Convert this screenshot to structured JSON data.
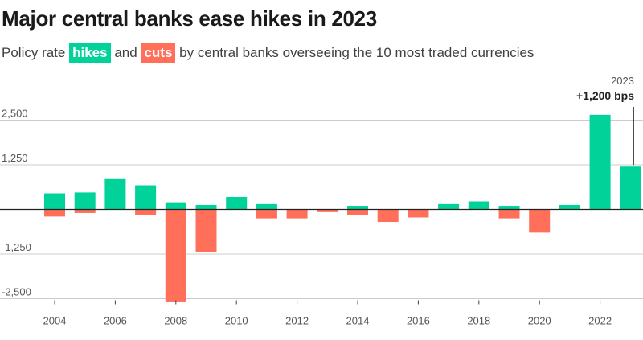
{
  "header": {
    "title": "Major central banks ease hikes in 2023",
    "subtitle_prefix": "Policy rate",
    "hikes_label": "hikes",
    "and_label": "and",
    "cuts_label": "cuts",
    "subtitle_suffix": "by central banks overseeing the 10 most traded currencies"
  },
  "colors": {
    "hikes": "#00d29a",
    "cuts": "#ff6f59",
    "gridline": "#cccccc",
    "zero_line": "#222222"
  },
  "annotation": {
    "year": "2023",
    "value_label": "+1,200 bps"
  },
  "chart_data": {
    "type": "bar",
    "title": "Major central banks ease hikes in 2023",
    "xlabel": "",
    "ylabel": "",
    "ylim": [
      -2600,
      2700
    ],
    "yticks": [
      2500,
      1250,
      -1250,
      -2500
    ],
    "ytick_labels": [
      "2,500",
      "1,250",
      "-1,250",
      "-2,500"
    ],
    "xtick_labels": [
      "2004",
      "2006",
      "2008",
      "2010",
      "2012",
      "2014",
      "2016",
      "2018",
      "2020",
      "2022"
    ],
    "grid": true,
    "categories": [
      2004,
      2005,
      2006,
      2007,
      2008,
      2009,
      2010,
      2011,
      2012,
      2013,
      2014,
      2015,
      2016,
      2017,
      2018,
      2019,
      2020,
      2021,
      2022,
      2023
    ],
    "series": [
      {
        "name": "hikes",
        "values": [
          450,
          475,
          850,
          675,
          200,
          125,
          350,
          150,
          0,
          0,
          100,
          0,
          0,
          150,
          225,
          100,
          0,
          125,
          2650,
          1200
        ]
      },
      {
        "name": "cuts",
        "values": [
          -200,
          -100,
          0,
          -150,
          -2600,
          -1200,
          0,
          -250,
          -250,
          -75,
          -150,
          -350,
          -225,
          0,
          0,
          -250,
          -650,
          0,
          0,
          0
        ]
      }
    ]
  }
}
